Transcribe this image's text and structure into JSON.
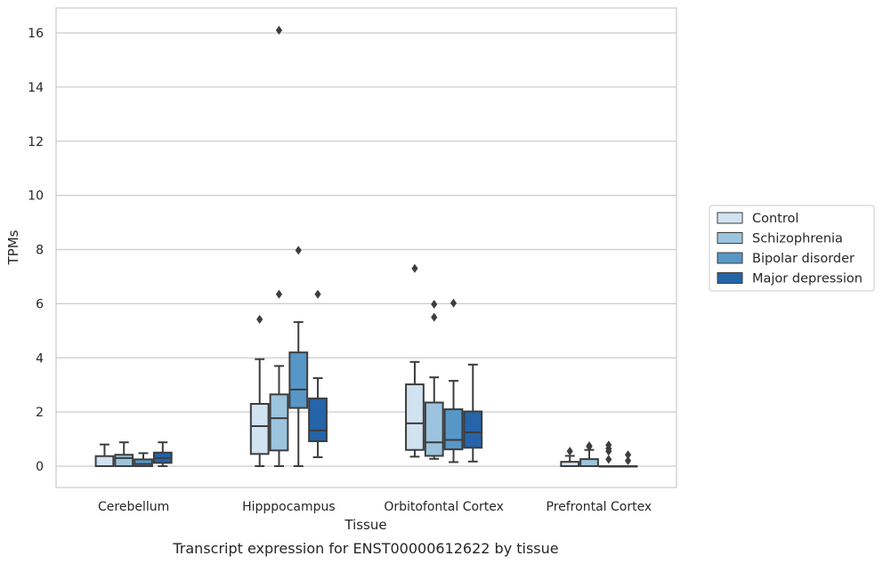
{
  "chart_data": {
    "type": "box",
    "caption": "Transcript expression for ENST00000612622 by tissue",
    "xlabel": "Tissue",
    "ylabel": "TPMs",
    "ylim": [
      -0.8,
      16.9
    ],
    "yticks": [
      0,
      2,
      4,
      6,
      8,
      10,
      12,
      14,
      16
    ],
    "grid": true,
    "legend_position": "right",
    "categories": [
      "Cerebellum",
      "Hipppocampus",
      "Orbitofontal Cortex",
      "Prefrontal Cortex"
    ],
    "series": [
      {
        "name": "Control",
        "color": "#d1e2f1",
        "boxes": [
          {
            "whislo": 0.0,
            "q1": 0.0,
            "med": 0.0,
            "q3": 0.37,
            "whishi": 0.8,
            "fliers": []
          },
          {
            "whislo": 0.0,
            "q1": 0.45,
            "med": 1.48,
            "q3": 2.3,
            "whishi": 3.95,
            "fliers": [
              5.42
            ]
          },
          {
            "whislo": 0.35,
            "q1": 0.6,
            "med": 1.58,
            "q3": 3.02,
            "whishi": 3.85,
            "fliers": [
              7.3
            ]
          },
          {
            "whislo": 0.0,
            "q1": 0.0,
            "med": 0.0,
            "q3": 0.16,
            "whishi": 0.38,
            "fliers": [
              0.55
            ]
          }
        ]
      },
      {
        "name": "Schizophrenia",
        "color": "#9cc4de",
        "boxes": [
          {
            "whislo": 0.0,
            "q1": 0.0,
            "med": 0.3,
            "q3": 0.42,
            "whishi": 0.88,
            "fliers": []
          },
          {
            "whislo": 0.0,
            "q1": 0.58,
            "med": 1.77,
            "q3": 2.65,
            "whishi": 3.7,
            "fliers": [
              6.35,
              16.1
            ]
          },
          {
            "whislo": 0.27,
            "q1": 0.38,
            "med": 0.88,
            "q3": 2.35,
            "whishi": 3.28,
            "fliers": [
              5.5,
              5.98
            ]
          },
          {
            "whislo": 0.0,
            "q1": 0.0,
            "med": 0.0,
            "q3": 0.26,
            "whishi": 0.6,
            "fliers": [
              0.72,
              0.75
            ]
          }
        ]
      },
      {
        "name": "Bipolar disorder",
        "color": "#5797c7",
        "boxes": [
          {
            "whislo": 0.0,
            "q1": 0.0,
            "med": 0.08,
            "q3": 0.25,
            "whishi": 0.48,
            "fliers": []
          },
          {
            "whislo": 0.0,
            "q1": 2.15,
            "med": 2.83,
            "q3": 4.2,
            "whishi": 5.32,
            "fliers": [
              7.97
            ]
          },
          {
            "whislo": 0.15,
            "q1": 0.62,
            "med": 0.97,
            "q3": 2.1,
            "whishi": 3.15,
            "fliers": [
              6.02
            ]
          },
          {
            "whislo": 0.0,
            "q1": 0.0,
            "med": 0.0,
            "q3": 0.0,
            "whishi": 0.0,
            "fliers": [
              0.25,
              0.55,
              0.65,
              0.78
            ]
          }
        ]
      },
      {
        "name": "Major depression",
        "color": "#2564a8",
        "boxes": [
          {
            "whislo": 0.0,
            "q1": 0.12,
            "med": 0.3,
            "q3": 0.5,
            "whishi": 0.88,
            "fliers": []
          },
          {
            "whislo": 0.33,
            "q1": 0.92,
            "med": 1.32,
            "q3": 2.5,
            "whishi": 3.25,
            "fliers": [
              6.35
            ]
          },
          {
            "whislo": 0.17,
            "q1": 0.68,
            "med": 1.25,
            "q3": 2.02,
            "whishi": 3.75,
            "fliers": []
          },
          {
            "whislo": 0.0,
            "q1": 0.0,
            "med": 0.0,
            "q3": 0.0,
            "whishi": 0.0,
            "fliers": [
              0.2,
              0.42
            ]
          }
        ]
      }
    ]
  }
}
